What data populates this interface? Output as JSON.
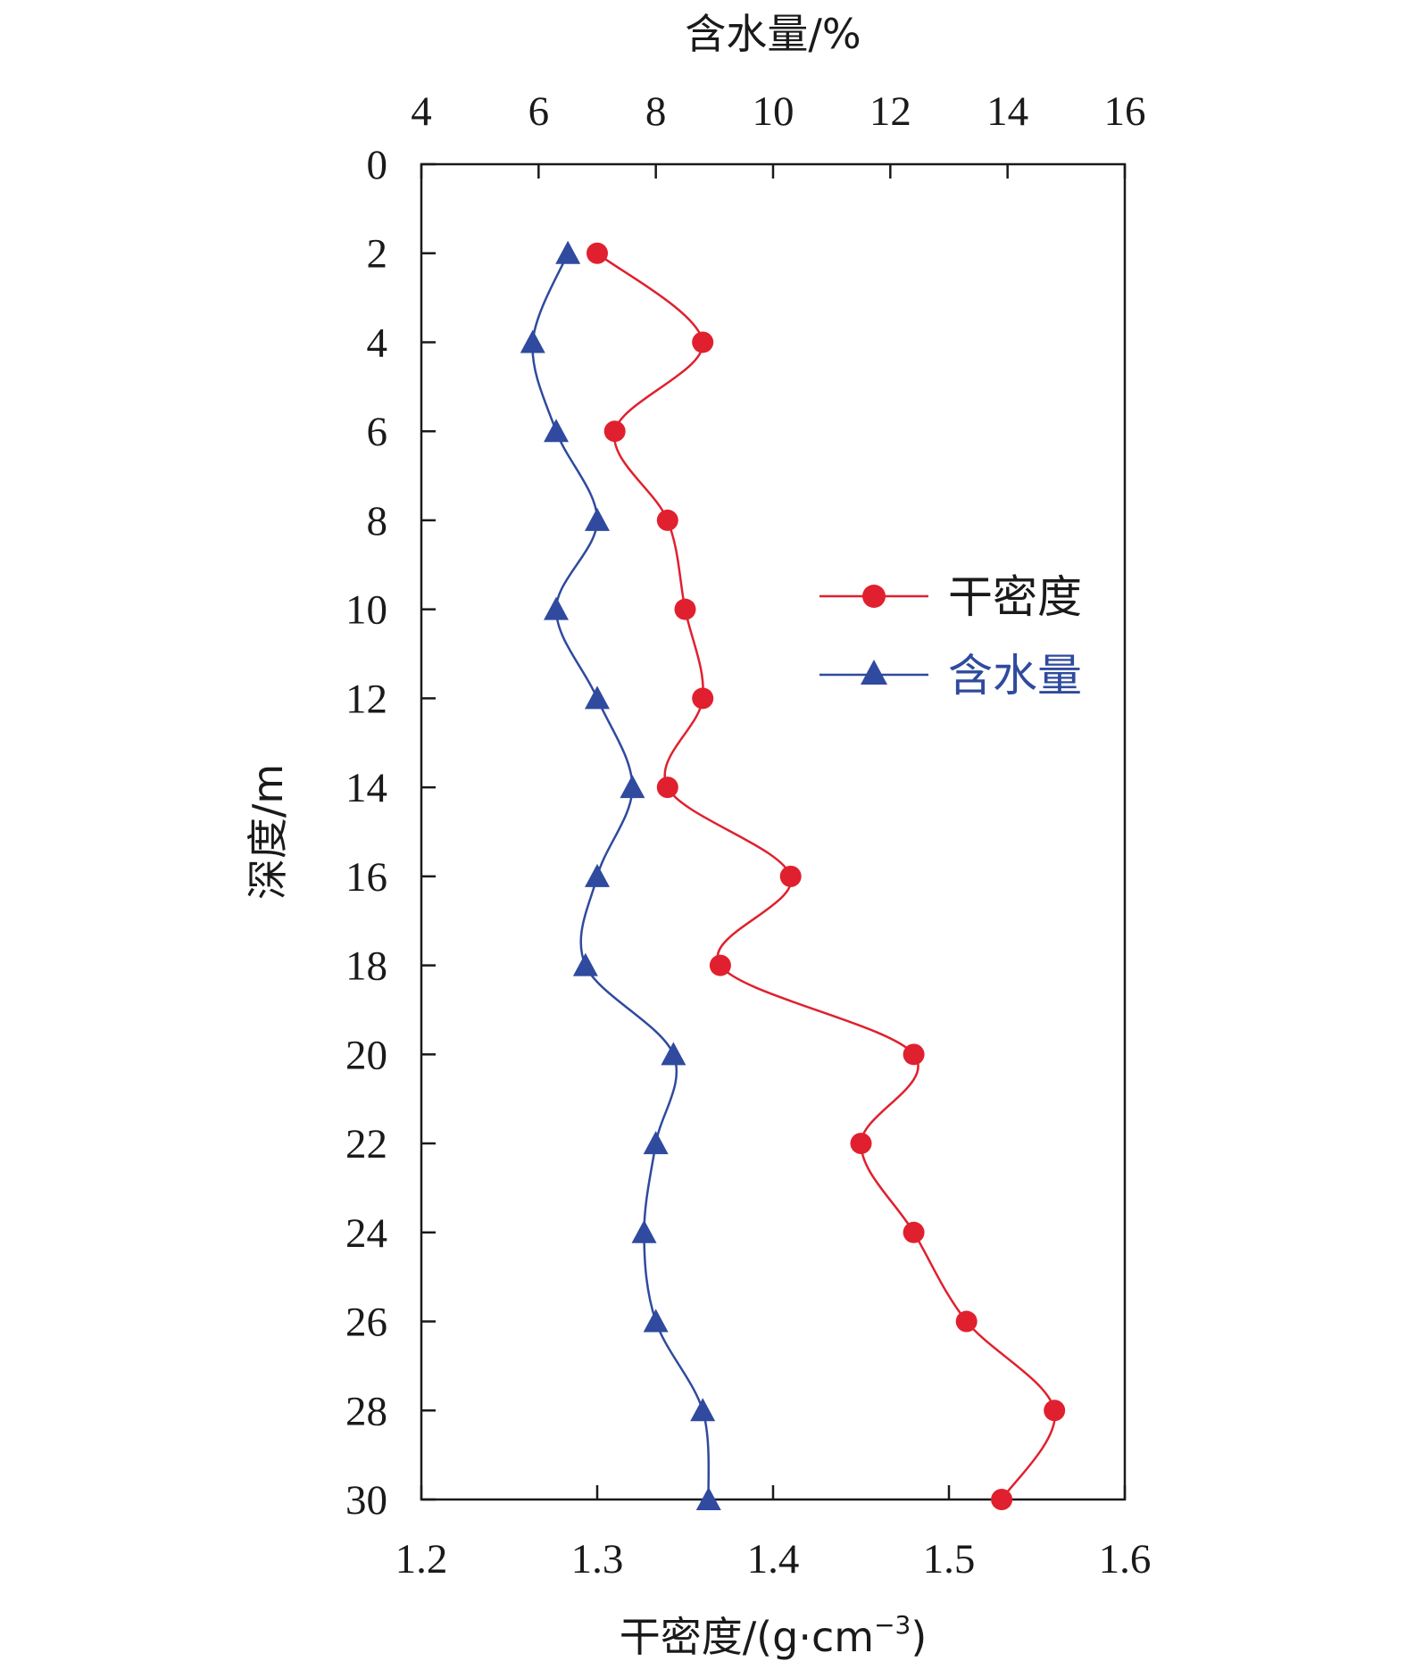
{
  "chart_data": {
    "type": "line",
    "orientation": "depth-profile",
    "top_axis": {
      "label": "含水量/%",
      "range": [
        4,
        16
      ],
      "ticks": [
        "4",
        "6",
        "8",
        "10",
        "12",
        "14",
        "16"
      ]
    },
    "bottom_axis": {
      "label_prefix": "干密度/(g·cm",
      "label_sup": "−3",
      "label_suffix": ")",
      "range": [
        1.2,
        1.6
      ],
      "ticks": [
        "1.2",
        "1.3",
        "1.4",
        "1.5",
        "1.6"
      ]
    },
    "left_axis": {
      "label": "深度/m",
      "range": [
        0,
        30
      ],
      "reversed": true,
      "ticks": [
        "0",
        "2",
        "4",
        "6",
        "8",
        "10",
        "12",
        "14",
        "16",
        "18",
        "20",
        "22",
        "24",
        "26",
        "28",
        "30"
      ]
    },
    "grid": false,
    "legend_position": "right-middle",
    "series": [
      {
        "name": "干密度",
        "axis": "bottom",
        "marker": "circle",
        "color": "#e0202e",
        "depth": [
          2,
          4,
          6,
          8,
          10,
          12,
          14,
          16,
          18,
          20,
          22,
          24,
          26,
          28,
          30
        ],
        "values": [
          1.3,
          1.36,
          1.31,
          1.34,
          1.35,
          1.36,
          1.34,
          1.41,
          1.37,
          1.48,
          1.45,
          1.48,
          1.51,
          1.56,
          1.53
        ]
      },
      {
        "name": "含水量",
        "axis": "top",
        "marker": "triangle",
        "color": "#2f4a9e",
        "depth": [
          2,
          4,
          6,
          8,
          10,
          12,
          14,
          16,
          18,
          20,
          22,
          24,
          26,
          28,
          30
        ],
        "values": [
          6.5,
          5.9,
          6.3,
          7.0,
          6.3,
          7.0,
          7.6,
          7.0,
          6.8,
          8.3,
          8.0,
          7.8,
          8.0,
          8.8,
          8.9
        ]
      }
    ]
  }
}
